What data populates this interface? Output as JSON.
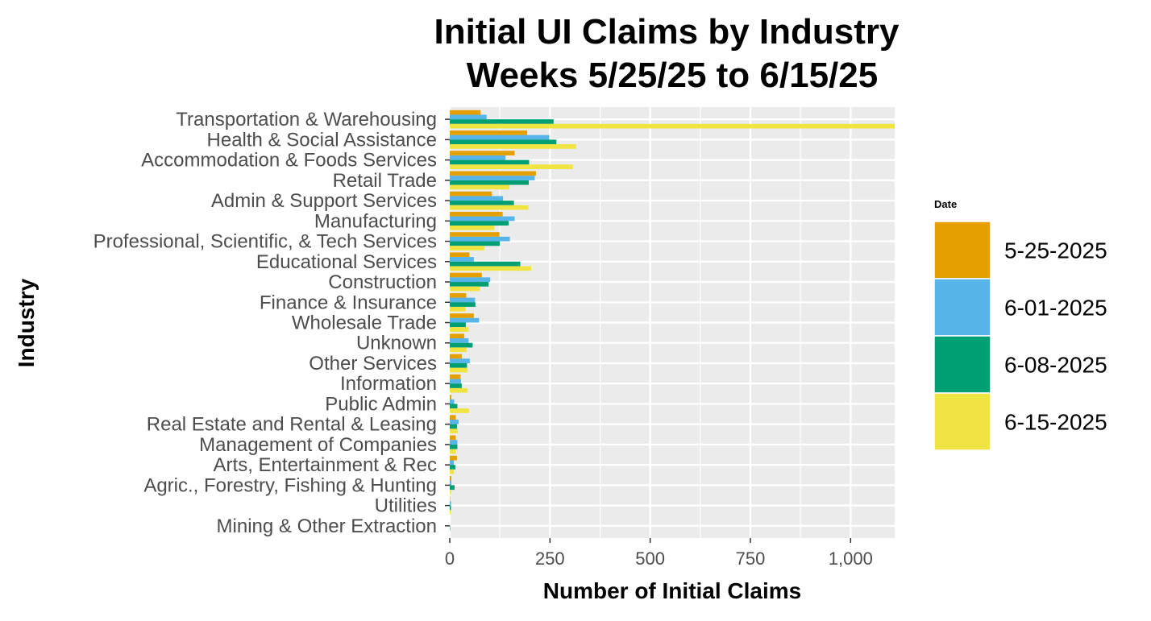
{
  "chart_data": {
    "type": "bar",
    "orientation": "horizontal",
    "title": "Initial UI Claims by Industry",
    "subtitle": "Weeks  5/25/25 to 6/15/25",
    "xlabel": "Number of Initial Claims",
    "ylabel": "Industry",
    "xlim": [
      0,
      1110
    ],
    "xticks": [
      0,
      250,
      500,
      750,
      1000
    ],
    "xtick_labels": [
      "0",
      "250",
      "500",
      "750",
      "1,000"
    ],
    "grid": true,
    "legend": {
      "title": "Date",
      "position": "right"
    },
    "categories": [
      "Transportation & Warehousing",
      "Health & Social Assistance",
      "Accommodation & Foods Services",
      "Retail Trade",
      "Admin & Support Services",
      "Manufacturing",
      "Professional, Scientific, & Tech Services",
      "Educational Services",
      "Construction",
      "Finance & Insurance",
      "Wholesale Trade",
      "Unknown",
      "Other Services",
      "Information",
      "Public Admin",
      "Real Estate and Rental & Leasing",
      "Management of Companies",
      "Arts, Entertainment & Rec",
      "Agric., Forestry, Fishing & Hunting",
      "Utilities",
      "Mining & Other Extraction"
    ],
    "series": [
      {
        "name": "5-25-2025",
        "color": "#E69F00",
        "values": [
          77,
          193,
          162,
          215,
          105,
          132,
          124,
          49,
          80,
          41,
          60,
          36,
          30,
          27,
          4,
          15,
          15,
          18,
          4,
          1,
          0
        ]
      },
      {
        "name": "6-01-2025",
        "color": "#56B4E9",
        "values": [
          92,
          248,
          139,
          212,
          133,
          162,
          150,
          60,
          101,
          63,
          73,
          47,
          50,
          28,
          11,
          22,
          19,
          10,
          4,
          3,
          0
        ]
      },
      {
        "name": "6-08-2025",
        "color": "#009E73",
        "values": [
          259,
          266,
          198,
          197,
          160,
          147,
          125,
          176,
          97,
          64,
          40,
          57,
          43,
          30,
          19,
          18,
          19,
          14,
          12,
          3,
          1
        ]
      },
      {
        "name": "6-15-2025",
        "color": "#F0E442",
        "values": [
          1110,
          315,
          307,
          149,
          196,
          111,
          86,
          203,
          75,
          39,
          47,
          42,
          44,
          44,
          48,
          20,
          15,
          10,
          3,
          2,
          0
        ]
      }
    ]
  }
}
